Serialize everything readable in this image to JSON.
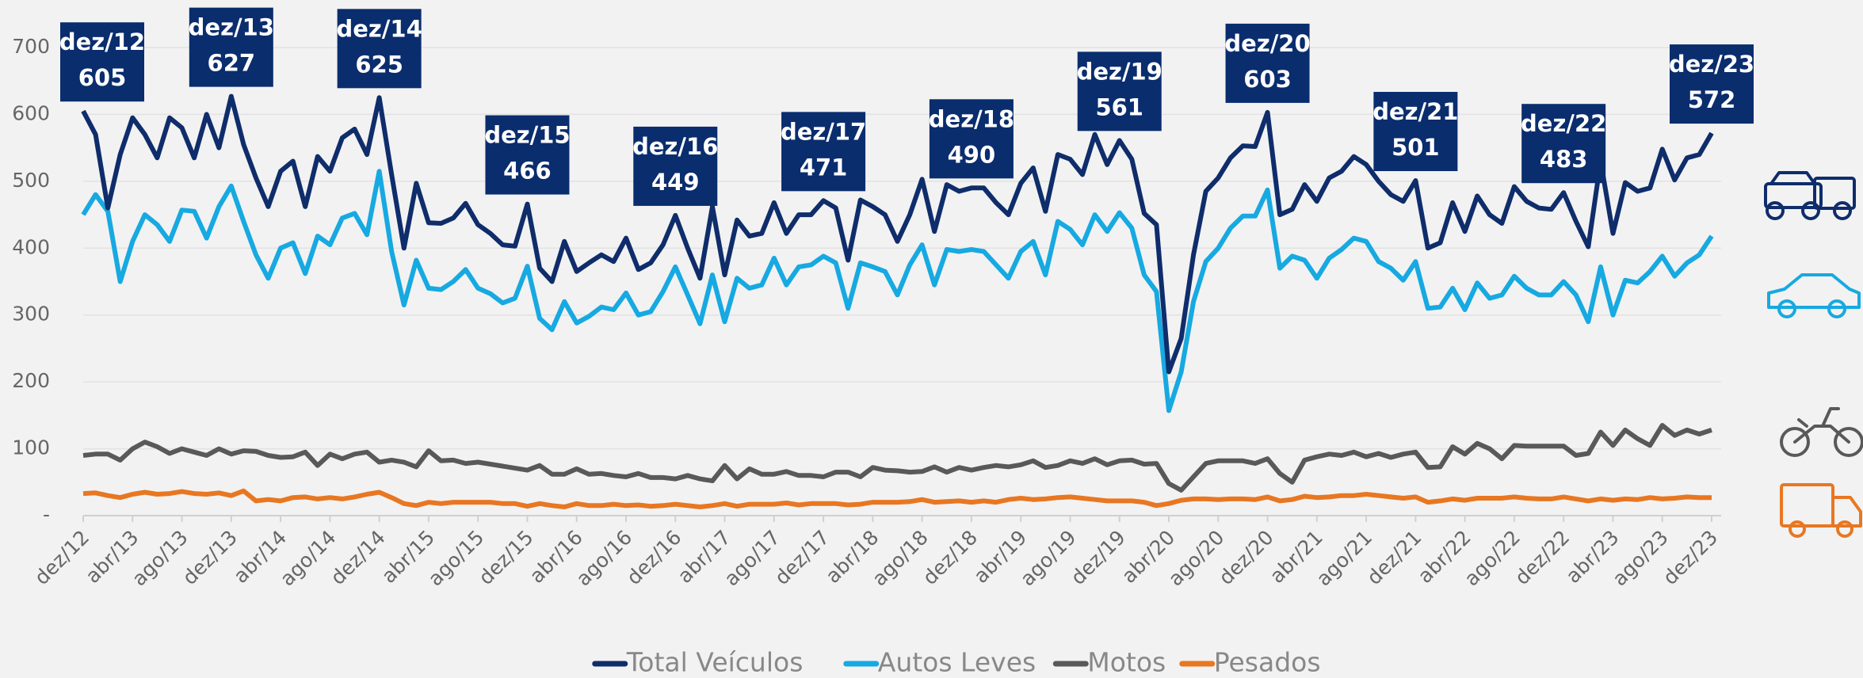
{
  "chart_data": {
    "type": "line",
    "categories": [
      "dez/12",
      null,
      null,
      null,
      "abr/13",
      null,
      null,
      null,
      "ago/13",
      null,
      null,
      null,
      "dez/13",
      null,
      null,
      null,
      "abr/14",
      null,
      null,
      null,
      "ago/14",
      null,
      null,
      null,
      "dez/14",
      null,
      null,
      null,
      "abr/15",
      null,
      null,
      null,
      "ago/15",
      null,
      null,
      null,
      "dez/15",
      null,
      null,
      null,
      "abr/16",
      null,
      null,
      null,
      "ago/16",
      null,
      null,
      null,
      "dez/16",
      null,
      null,
      null,
      "abr/17",
      null,
      null,
      null,
      "ago/17",
      null,
      null,
      null,
      "dez/17",
      null,
      null,
      null,
      "abr/18",
      null,
      null,
      null,
      "ago/18",
      null,
      null,
      null,
      "dez/18",
      null,
      null,
      null,
      "abr/19",
      null,
      null,
      null,
      "ago/19",
      null,
      null,
      null,
      "dez/19",
      null,
      null,
      null,
      "abr/20",
      null,
      null,
      null,
      "ago/20",
      null,
      null,
      null,
      "dez/20",
      null,
      null,
      null,
      "abr/21",
      null,
      null,
      null,
      "ago/21",
      null,
      null,
      null,
      "dez/21",
      null,
      null,
      null,
      "abr/22",
      null,
      null,
      null,
      "ago/22",
      null,
      null,
      null,
      "dez/22",
      null,
      null,
      null,
      "abr/23",
      null,
      null,
      null,
      "ago/23",
      null,
      null,
      null,
      "dez/23"
    ],
    "series": [
      {
        "name": "Total Veículos",
        "color": "#0f2d6b",
        "values": [
          605,
          570,
          460,
          540,
          595,
          570,
          535,
          595,
          580,
          535,
          600,
          550,
          627,
          555,
          505,
          462,
          515,
          530,
          462,
          537,
          515,
          565,
          578,
          540,
          625,
          510,
          400,
          497,
          438,
          437,
          445,
          467,
          435,
          422,
          405,
          403,
          466,
          370,
          350,
          410,
          365,
          378,
          390,
          380,
          415,
          368,
          378,
          405,
          449,
          400,
          355,
          462,
          360,
          442,
          418,
          422,
          468,
          422,
          450,
          450,
          471,
          460,
          382,
          472,
          462,
          450,
          410,
          450,
          503,
          425,
          495,
          485,
          490,
          490,
          468,
          450,
          497,
          520,
          455,
          540,
          533,
          510,
          570,
          525,
          561,
          533,
          452,
          435,
          215,
          265,
          390,
          485,
          505,
          535,
          553,
          552,
          603,
          450,
          458,
          495,
          470,
          505,
          515,
          537,
          525,
          500,
          480,
          470,
          501,
          400,
          408,
          468,
          425,
          478,
          450,
          437,
          492,
          470,
          460,
          458,
          483,
          440,
          402,
          530,
          422,
          498,
          485,
          490,
          548,
          502,
          535,
          540,
          572
        ]
      },
      {
        "name": "Autos Leves",
        "color": "#17a9e1",
        "values": [
          450,
          480,
          455,
          350,
          410,
          450,
          435,
          410,
          457,
          455,
          415,
          462,
          493,
          440,
          390,
          355,
          400,
          408,
          362,
          418,
          405,
          445,
          452,
          420,
          515,
          395,
          315,
          382,
          340,
          338,
          350,
          368,
          340,
          332,
          318,
          325,
          373,
          295,
          278,
          320,
          288,
          298,
          312,
          308,
          333,
          300,
          305,
          335,
          372,
          330,
          287,
          360,
          290,
          355,
          340,
          345,
          385,
          345,
          372,
          375,
          388,
          378,
          310,
          378,
          372,
          365,
          330,
          375,
          405,
          345,
          398,
          395,
          398,
          395,
          375,
          355,
          395,
          410,
          360,
          440,
          428,
          405,
          450,
          425,
          453,
          430,
          360,
          335,
          157,
          215,
          320,
          380,
          400,
          430,
          448,
          448,
          487,
          370,
          388,
          382,
          355,
          385,
          398,
          415,
          410,
          380,
          370,
          352,
          380,
          310,
          312,
          340,
          308,
          348,
          325,
          330,
          358,
          340,
          330,
          330,
          350,
          330,
          290,
          372,
          300,
          352,
          348,
          365,
          388,
          358,
          378,
          390,
          418
        ]
      },
      {
        "name": "Motos",
        "color": "#595959",
        "values": [
          90,
          92,
          92,
          83,
          100,
          110,
          103,
          93,
          100,
          95,
          90,
          100,
          92,
          97,
          96,
          90,
          87,
          88,
          95,
          75,
          92,
          85,
          92,
          95,
          80,
          83,
          80,
          73,
          97,
          82,
          83,
          78,
          80,
          77,
          74,
          71,
          68,
          75,
          62,
          62,
          70,
          62,
          63,
          60,
          58,
          63,
          57,
          57,
          55,
          60,
          55,
          52,
          75,
          55,
          70,
          62,
          62,
          66,
          60,
          60,
          58,
          65,
          65,
          58,
          72,
          68,
          67,
          65,
          66,
          73,
          65,
          72,
          68,
          72,
          75,
          73,
          76,
          82,
          72,
          75,
          82,
          78,
          85,
          76,
          82,
          83,
          77,
          78,
          48,
          38,
          58,
          78,
          82,
          82,
          82,
          78,
          85,
          63,
          50,
          83,
          88,
          92,
          90,
          95,
          88,
          93,
          87,
          92,
          95,
          72,
          73,
          103,
          92,
          108,
          100,
          85,
          105,
          104,
          104,
          104,
          104,
          90,
          93,
          125,
          105,
          128,
          115,
          105,
          135,
          120,
          128,
          122,
          128
        ]
      },
      {
        "name": "Pesados",
        "color": "#e87722",
        "values": [
          33,
          34,
          30,
          27,
          32,
          35,
          32,
          33,
          36,
          33,
          32,
          34,
          30,
          37,
          22,
          24,
          22,
          27,
          28,
          25,
          27,
          25,
          28,
          32,
          35,
          27,
          18,
          15,
          20,
          18,
          20,
          20,
          20,
          20,
          18,
          18,
          14,
          18,
          15,
          13,
          18,
          15,
          15,
          17,
          15,
          16,
          14,
          15,
          17,
          15,
          13,
          15,
          18,
          14,
          17,
          17,
          17,
          19,
          16,
          18,
          18,
          18,
          16,
          17,
          20,
          20,
          20,
          21,
          24,
          20,
          21,
          22,
          20,
          22,
          20,
          24,
          26,
          24,
          25,
          27,
          28,
          26,
          24,
          22,
          22,
          22,
          20,
          15,
          18,
          23,
          25,
          25,
          24,
          25,
          25,
          24,
          28,
          22,
          24,
          29,
          27,
          28,
          30,
          30,
          32,
          30,
          28,
          26,
          28,
          20,
          22,
          25,
          23,
          26,
          26,
          26,
          28,
          26,
          25,
          25,
          28,
          25,
          22,
          25,
          23,
          25,
          24,
          27,
          25,
          26,
          28,
          27,
          27
        ]
      }
    ],
    "annotations": [
      {
        "label": "dez/12",
        "value": 605
      },
      {
        "label": "dez/13",
        "value": 627
      },
      {
        "label": "dez/14",
        "value": 625
      },
      {
        "label": "dez/15",
        "value": 466
      },
      {
        "label": "dez/16",
        "value": 449
      },
      {
        "label": "dez/17",
        "value": 471
      },
      {
        "label": "dez/18",
        "value": 490
      },
      {
        "label": "dez/19",
        "value": 561
      },
      {
        "label": "dez/20",
        "value": 603
      },
      {
        "label": "dez/21",
        "value": 501
      },
      {
        "label": "dez/22",
        "value": 483
      },
      {
        "label": "dez/23",
        "value": 572
      }
    ],
    "ylim": [
      0,
      700
    ],
    "yticks": [
      {
        "value": 0,
        "label": "-"
      },
      100,
      200,
      300,
      400,
      500,
      600,
      700
    ],
    "grid": true,
    "legend": "bottom"
  }
}
